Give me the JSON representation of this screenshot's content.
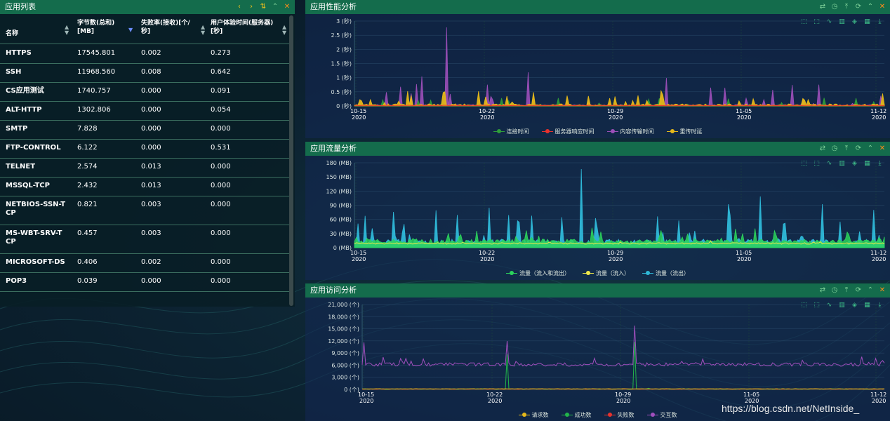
{
  "app_list": {
    "title": "应用列表",
    "columns": [
      {
        "label": "名称"
      },
      {
        "label": "字节数(总和)\n[MB]"
      },
      {
        "label": "失败率(接收)[个/\n秒]"
      },
      {
        "label": "用户体验时间(服务器)\n[秒]"
      }
    ],
    "rows": [
      {
        "name": "HTTPS",
        "bytes": "17545.801",
        "fail": "0.002",
        "ux": "0.273"
      },
      {
        "name": "SSH",
        "bytes": "11968.560",
        "fail": "0.008",
        "ux": "0.642"
      },
      {
        "name": "CS应用测试",
        "bytes": "1740.757",
        "fail": "0.000",
        "ux": "0.091"
      },
      {
        "name": "ALT-HTTP",
        "bytes": "1302.806",
        "fail": "0.000",
        "ux": "0.054"
      },
      {
        "name": "SMTP",
        "bytes": "7.828",
        "fail": "0.000",
        "ux": "0.000"
      },
      {
        "name": "FTP-CONTROL",
        "bytes": "6.122",
        "fail": "0.000",
        "ux": "0.531"
      },
      {
        "name": "TELNET",
        "bytes": "2.574",
        "fail": "0.013",
        "ux": "0.000"
      },
      {
        "name": "MSSQL-TCP",
        "bytes": "2.432",
        "fail": "0.013",
        "ux": "0.000"
      },
      {
        "name": "NETBIOS-SSN-T\nCP",
        "bytes": "0.821",
        "fail": "0.003",
        "ux": "0.000"
      },
      {
        "name": "MS-WBT-SRV-T\nCP",
        "bytes": "0.457",
        "fail": "0.003",
        "ux": "0.000"
      },
      {
        "name": "MICROSOFT-DS",
        "bytes": "0.406",
        "fail": "0.002",
        "ux": "0.000"
      },
      {
        "name": "POP3",
        "bytes": "0.039",
        "fail": "0.000",
        "ux": "0.000"
      }
    ]
  },
  "header_tools": [
    "swap-icon",
    "clock-icon",
    "pin-icon",
    "refresh-icon",
    "collapse-icon",
    "close-icon"
  ],
  "chart_tools": [
    "zoom-icon",
    "zoom-reset-icon",
    "line-icon",
    "bar-icon",
    "stack-icon",
    "tile-icon",
    "download-icon"
  ],
  "charts": [
    {
      "id": "perf",
      "title": "应用性能分析",
      "type": "area",
      "yticks": [
        "3 (秒)",
        "2.5 (秒)",
        "2 (秒)",
        "1.5 (秒)",
        "1 (秒)",
        "0.5 (秒)",
        "0 (秒)"
      ],
      "ylim": [
        0,
        3
      ],
      "xticks": [
        [
          "10-15",
          "2020"
        ],
        [
          "10-22",
          "2020"
        ],
        [
          "10-29",
          "2020"
        ],
        [
          "11-05",
          "2020"
        ],
        [
          "11-12",
          "2020"
        ]
      ],
      "legend": [
        {
          "name": "连接时间",
          "color": "#2f9e3a"
        },
        {
          "name": "服务器响应时间",
          "color": "#e8322d"
        },
        {
          "name": "内容传输时间",
          "color": "#9b4fb8"
        },
        {
          "name": "重传时延",
          "color": "#e5b81a"
        }
      ]
    },
    {
      "id": "flow",
      "title": "应用流量分析",
      "type": "area",
      "yticks": [
        "180 (MB)",
        "150 (MB)",
        "120 (MB)",
        "90 (MB)",
        "60 (MB)",
        "30 (MB)",
        "0 (MB)"
      ],
      "ylim": [
        0,
        180
      ],
      "xticks": [
        [
          "10-15",
          "2020"
        ],
        [
          "10-22",
          "2020"
        ],
        [
          "10-29",
          "2020"
        ],
        [
          "11-05",
          "2020"
        ],
        [
          "11-12",
          "2020"
        ]
      ],
      "legend": [
        {
          "name": "流量（流入和流出）",
          "color": "#2bd35c"
        },
        {
          "name": "流量（流入）",
          "color": "#f0e84a"
        },
        {
          "name": "流量（流出）",
          "color": "#2fb8d8"
        }
      ]
    },
    {
      "id": "visit",
      "title": "应用访问分析",
      "type": "line",
      "yticks": [
        "21,000 (个)",
        "18,000 (个)",
        "15,000 (个)",
        "12,000 (个)",
        "9,000 (个)",
        "6,000 (个)",
        "3,000 (个)",
        "0 (个)"
      ],
      "ylim": [
        0,
        21000
      ],
      "xticks": [
        [
          "10-15",
          "2020"
        ],
        [
          "10-22",
          "2020"
        ],
        [
          "10-29",
          "2020"
        ],
        [
          "11-05",
          "2020"
        ],
        [
          "11-12",
          "2020"
        ]
      ],
      "legend": [
        {
          "name": "请求数",
          "color": "#e5b81a"
        },
        {
          "name": "成功数",
          "color": "#22b54a"
        },
        {
          "name": "失败数",
          "color": "#e8322d"
        },
        {
          "name": "交互数",
          "color": "#a04fbd"
        }
      ]
    }
  ],
  "watermark": "https://blog.csdn.net/NetInside_"
}
